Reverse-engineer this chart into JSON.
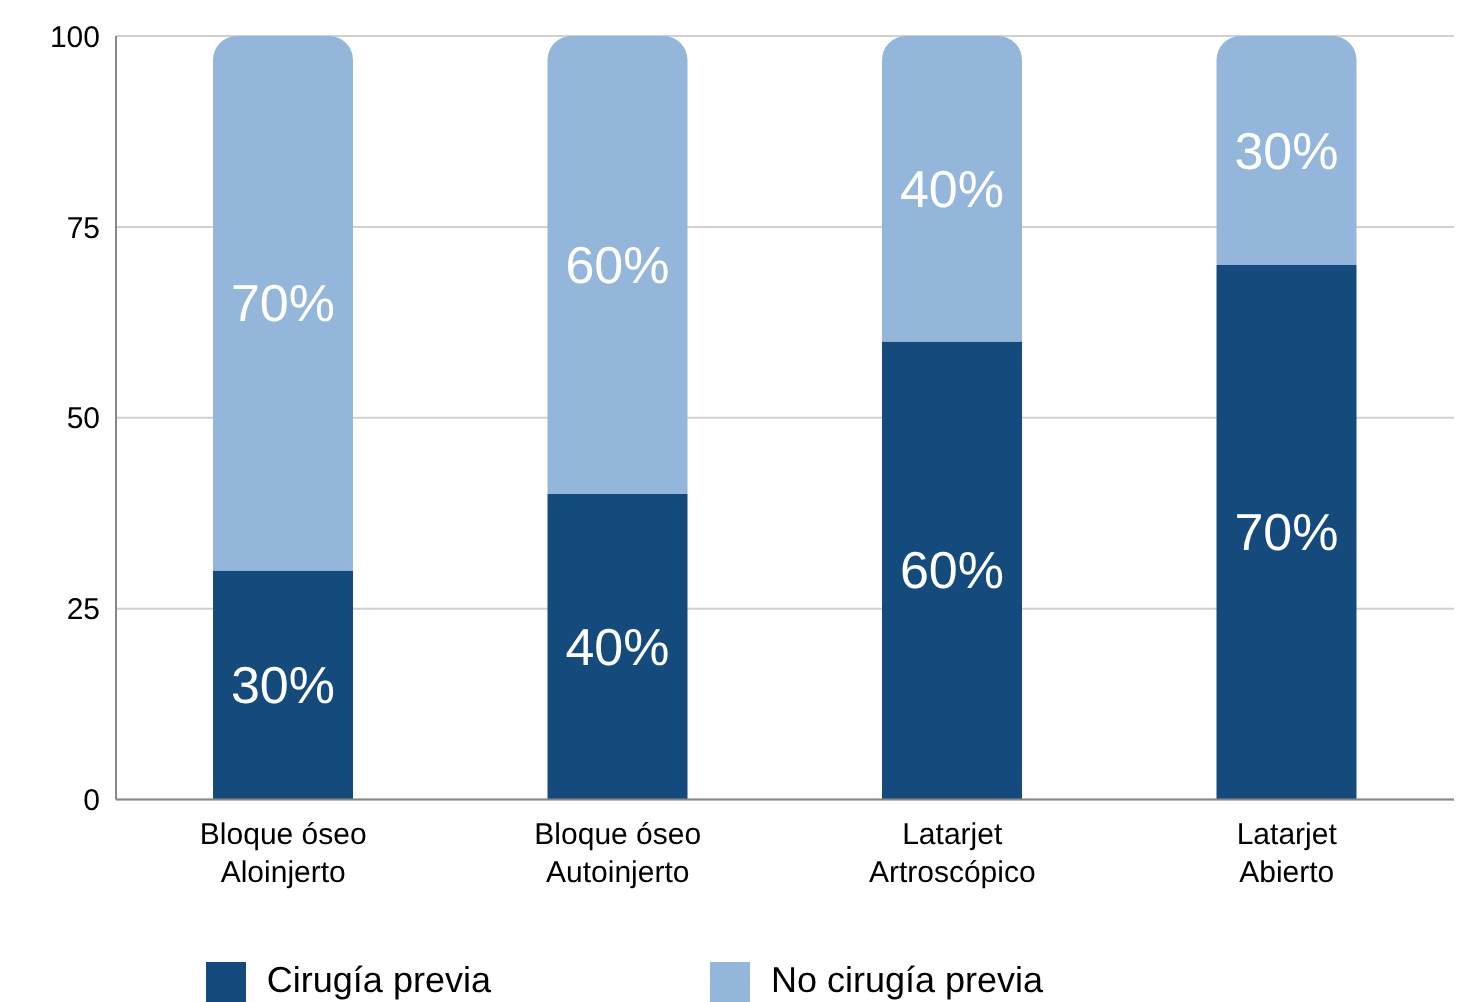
{
  "chart_data": {
    "type": "bar",
    "stacked": true,
    "categories": [
      "Bloque óseo\nAloinjerto",
      "Bloque óseo\nAutoinjerto",
      "Latarjet\nArtroscópico",
      "Latarjet\nAbierto"
    ],
    "series": [
      {
        "name": "Cirugía previa",
        "color": "#154b7c",
        "values": [
          30,
          40,
          60,
          70
        ],
        "value_labels": [
          "30%",
          "40%",
          "60%",
          "70%"
        ]
      },
      {
        "name": "No cirugía previa",
        "color": "#94b6da",
        "values": [
          70,
          60,
          40,
          30
        ],
        "value_labels": [
          "70%",
          "60%",
          "40%",
          "30%"
        ]
      }
    ],
    "ylim": [
      0,
      100
    ],
    "yticks": [
      0,
      25,
      50,
      75,
      100
    ],
    "grid": "y",
    "legend": "bottom"
  }
}
